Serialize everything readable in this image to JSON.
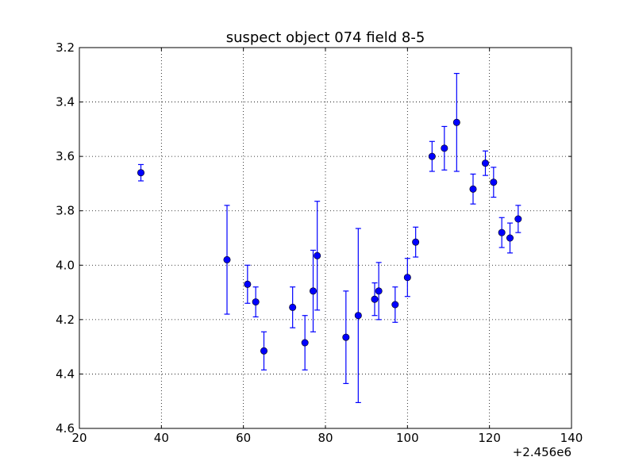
{
  "chart_data": {
    "type": "scatter",
    "title": "suspect object 074 field 8-5",
    "xlabel": "",
    "ylabel": "",
    "xlim": [
      20,
      140
    ],
    "ylim": [
      3.2,
      4.6
    ],
    "y_inverted": true,
    "grid": true,
    "x_ticks": [
      "20",
      "40",
      "60",
      "80",
      "100",
      "120",
      "140"
    ],
    "x_tick_values": [
      20,
      40,
      60,
      80,
      100,
      120,
      140
    ],
    "y_ticks": [
      "3.2",
      "3.4",
      "3.6",
      "3.8",
      "4.0",
      "4.2",
      "4.4",
      "4.6"
    ],
    "y_tick_values": [
      3.2,
      3.4,
      3.6,
      3.8,
      4.0,
      4.2,
      4.4,
      4.6
    ],
    "x_offset_label": "+2.456e6",
    "marker_color": "#0000ff",
    "series": [
      {
        "points": [
          {
            "x": 35,
            "y": 3.66,
            "err": 0.03
          },
          {
            "x": 56,
            "y": 3.98,
            "err": 0.2
          },
          {
            "x": 61,
            "y": 4.07,
            "err": 0.07
          },
          {
            "x": 63,
            "y": 4.135,
            "err": 0.055
          },
          {
            "x": 65,
            "y": 4.315,
            "err": 0.07
          },
          {
            "x": 72,
            "y": 4.155,
            "err": 0.075
          },
          {
            "x": 75,
            "y": 4.285,
            "err": 0.1
          },
          {
            "x": 77,
            "y": 4.095,
            "err": 0.15
          },
          {
            "x": 78,
            "y": 3.965,
            "err": 0.2
          },
          {
            "x": 85,
            "y": 4.265,
            "err": 0.17
          },
          {
            "x": 88,
            "y": 4.185,
            "err": 0.32
          },
          {
            "x": 92,
            "y": 4.125,
            "err": 0.06
          },
          {
            "x": 93,
            "y": 4.095,
            "err": 0.105
          },
          {
            "x": 97,
            "y": 4.145,
            "err": 0.065
          },
          {
            "x": 100,
            "y": 4.045,
            "err": 0.07
          },
          {
            "x": 102,
            "y": 3.915,
            "err": 0.055
          },
          {
            "x": 106,
            "y": 3.6,
            "err": 0.055
          },
          {
            "x": 109,
            "y": 3.57,
            "err": 0.08
          },
          {
            "x": 112,
            "y": 3.475,
            "err": 0.18
          },
          {
            "x": 116,
            "y": 3.72,
            "err": 0.055
          },
          {
            "x": 119,
            "y": 3.625,
            "err": 0.045
          },
          {
            "x": 121,
            "y": 3.695,
            "err": 0.055
          },
          {
            "x": 123,
            "y": 3.88,
            "err": 0.055
          },
          {
            "x": 125,
            "y": 3.9,
            "err": 0.055
          },
          {
            "x": 127,
            "y": 3.83,
            "err": 0.05
          }
        ]
      }
    ]
  }
}
